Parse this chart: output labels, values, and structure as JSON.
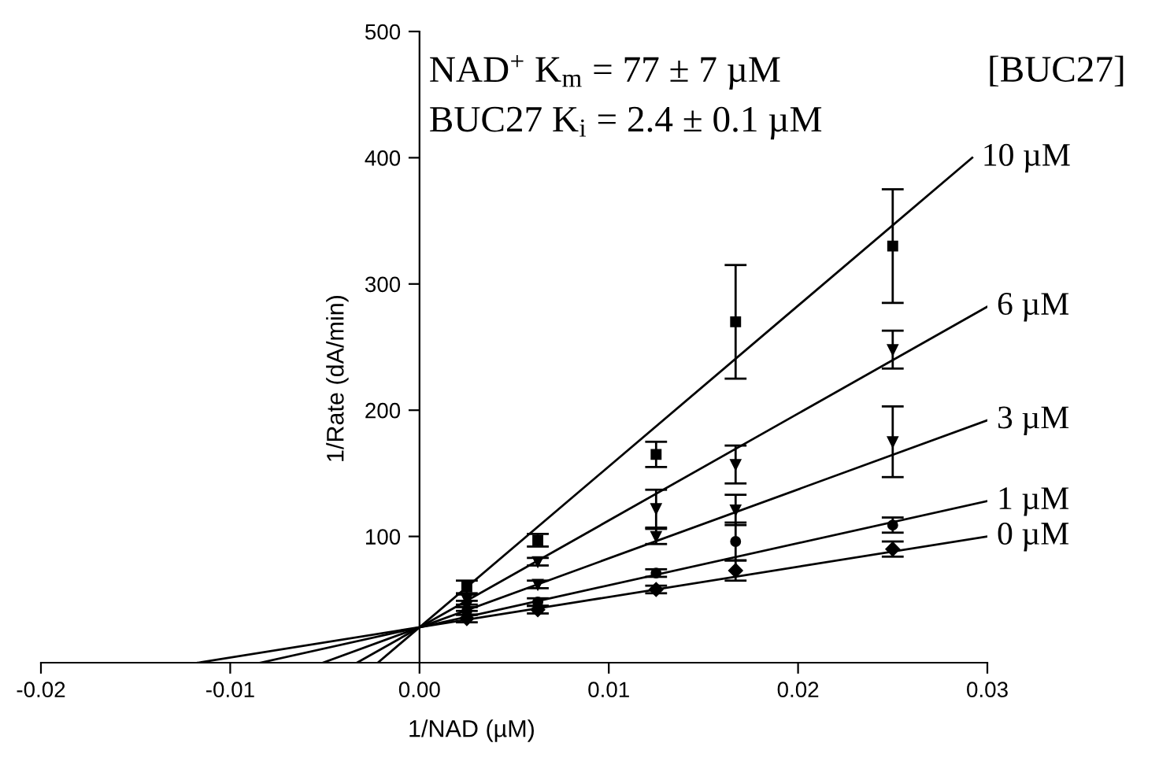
{
  "chart_data": {
    "type": "scatter",
    "xlabel": "1/NAD (µM)",
    "ylabel": "1/Rate (dA/min)",
    "xlim": [
      -0.02,
      0.03
    ],
    "ylim": [
      0,
      500
    ],
    "xticks": [
      -0.02,
      -0.01,
      {
        "value": 0,
        "label": "0.00"
      },
      0.01,
      0.02,
      0.03
    ],
    "yticks": [
      100,
      200,
      300,
      400,
      500
    ],
    "grid": false,
    "legend": false,
    "annotations": [
      "NAD$^{+}$ K$_{m}$ = 77 ± 7 µM",
      "BUC27 K$_{i}$ = 2.4 ± 0.1 µM",
      "[BUC27]"
    ],
    "series": [
      {
        "type": "line",
        "name": "10 µM",
        "color": "#000000",
        "marker": "none",
        "x": [
          -0.0022,
          0.0292
        ],
        "values": [
          0,
          400
        ]
      },
      {
        "type": "line",
        "name": "6 µM",
        "color": "#000000",
        "marker": "none",
        "x": [
          -0.0033,
          0.03
        ],
        "values": [
          0,
          282
        ]
      },
      {
        "type": "line",
        "name": "3 µM",
        "color": "#000000",
        "marker": "none",
        "x": [
          -0.0051,
          0.03
        ],
        "values": [
          0,
          192
        ]
      },
      {
        "type": "line",
        "name": "1 µM",
        "color": "#000000",
        "marker": "none",
        "x": [
          -0.0084,
          0.03
        ],
        "values": [
          0,
          128
        ]
      },
      {
        "type": "line",
        "name": "0 µM",
        "color": "#000000",
        "marker": "none",
        "x": [
          -0.0117,
          0.03
        ],
        "values": [
          0,
          100
        ]
      },
      {
        "color": "#000000",
        "marker": "square",
        "x": [
          0.0025,
          0.00625,
          0.0125,
          0.0167,
          0.025
        ],
        "values": [
          60,
          97,
          165,
          270,
          330
        ],
        "errors": [
          5,
          5,
          10,
          45,
          45
        ]
      },
      {
        "color": "#000000",
        "marker": "triangle",
        "x": [
          0.0025,
          0.00625,
          0.0125,
          0.0167,
          0.025
        ],
        "values": [
          50,
          80,
          122,
          157,
          248
        ],
        "errors": [
          4,
          3,
          15,
          15,
          15
        ]
      },
      {
        "color": "#000000",
        "marker": "triangle",
        "x": [
          0.0025,
          0.00625,
          0.0125,
          0.0167,
          0.025
        ],
        "values": [
          45,
          62,
          100,
          121,
          175
        ],
        "errors": [
          4,
          3,
          6,
          12,
          28
        ]
      },
      {
        "color": "#000000",
        "marker": "circle",
        "x": [
          0.0025,
          0.00625,
          0.0125,
          0.0167,
          0.025
        ],
        "values": [
          41,
          48,
          71,
          96,
          109
        ],
        "errors": [
          3,
          3,
          3,
          15,
          6
        ]
      },
      {
        "color": "#000000",
        "marker": "diamond",
        "x": [
          0.0025,
          0.00625,
          0.0125,
          0.0167,
          0.025
        ],
        "values": [
          35,
          42,
          58,
          73,
          90
        ],
        "errors": [
          3,
          3,
          3,
          8,
          6
        ]
      }
    ]
  }
}
